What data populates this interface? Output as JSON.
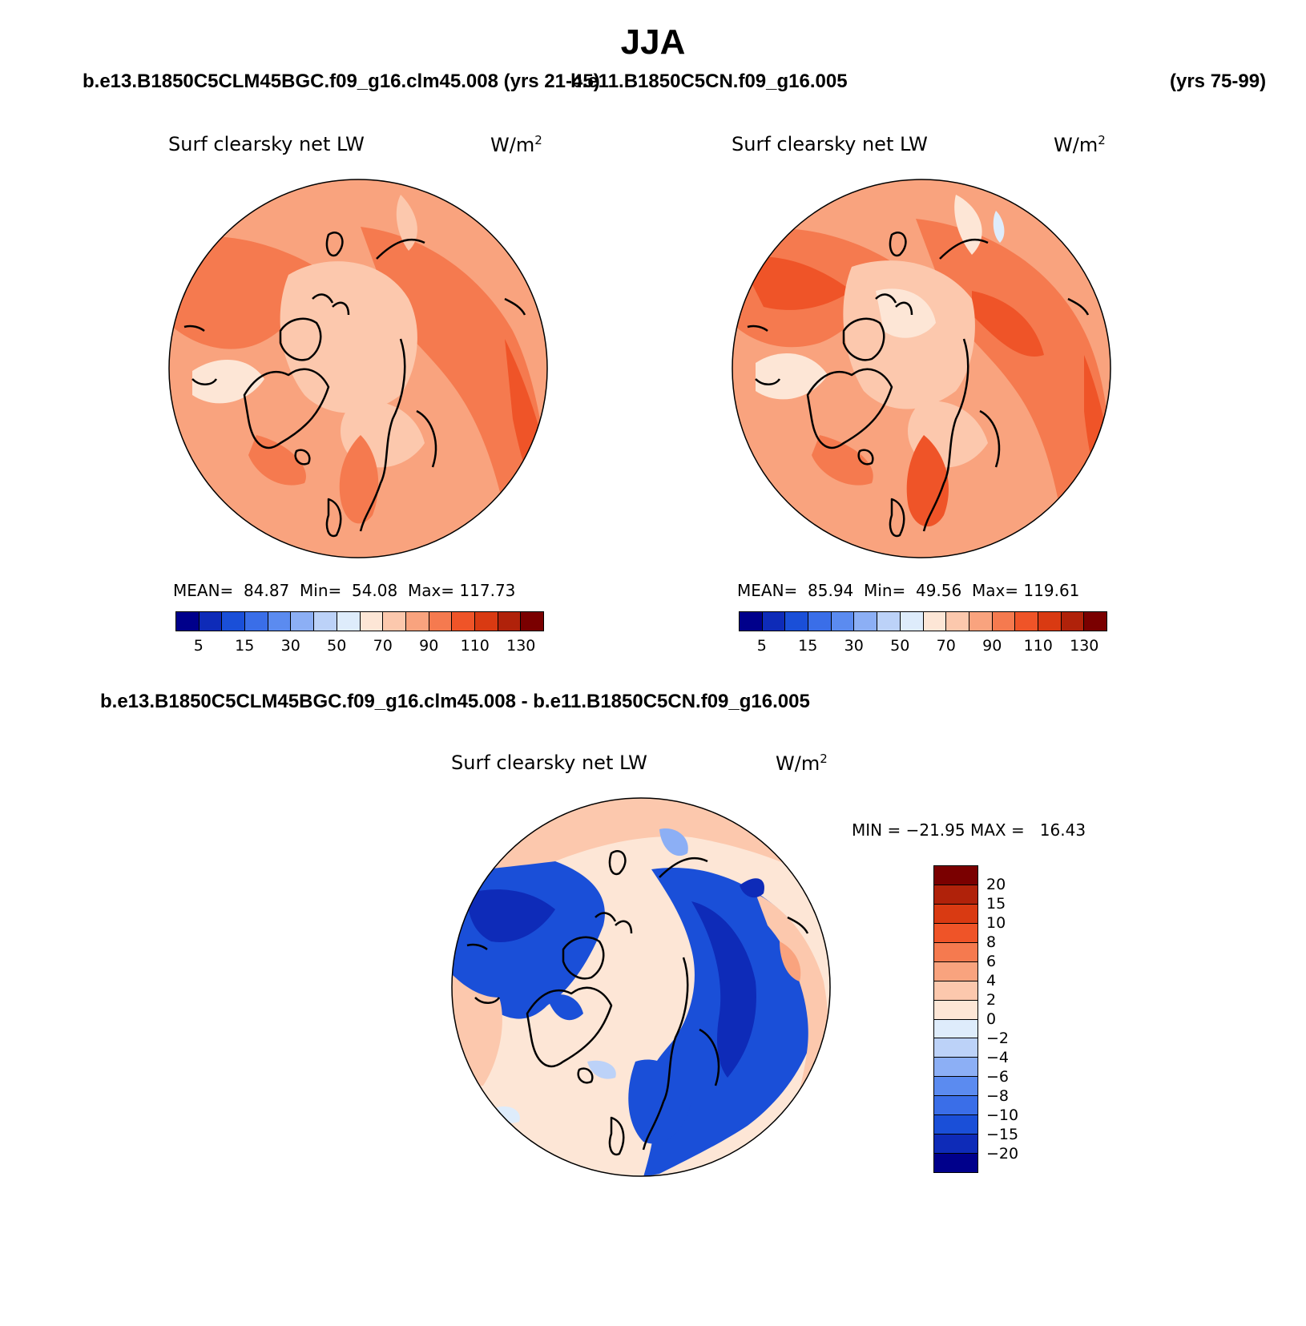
{
  "title": "JJA",
  "top_left_case": "b.e13.B1850C5CLM45BGC.f09_g16.clm45.008 (yrs 21-45)",
  "top_right_case": "b.e11.B1850C5CN.f09_g16.005",
  "top_right_years": "(yrs 75-99)",
  "diff_case": "b.e13.B1850C5CLM45BGC.f09_g16.clm45.008 - b.e11.B1850C5CN.f09_g16.005",
  "panels": [
    {
      "variable": "Surf clearsky net LW",
      "units_base": "W/m",
      "units_sup": "2",
      "mean_label": "MEAN=",
      "mean": "84.87",
      "min_label": "Min=",
      "min": "54.08",
      "max_label": "Max=",
      "max": "117.73"
    },
    {
      "variable": "Surf clearsky net LW",
      "units_base": "W/m",
      "units_sup": "2",
      "mean_label": "MEAN=",
      "mean": "85.94",
      "min_label": "Min=",
      "min": "49.56",
      "max_label": "Max=",
      "max": "119.61"
    }
  ],
  "diff_panel": {
    "variable": "Surf clearsky net LW",
    "units_base": "W/m",
    "units_sup": "2",
    "minmax": "MIN = −21.95 MAX =   16.43"
  },
  "abs_colorbar": {
    "colors": [
      "#00008b",
      "#0e2bb8",
      "#1a4fd8",
      "#3a6ee8",
      "#5b8bf0",
      "#8caff5",
      "#bcd2f8",
      "#deecfb",
      "#fde6d6",
      "#fcc8ad",
      "#f9a37e",
      "#f57a4f",
      "#ef5428",
      "#d93a12",
      "#b0220a",
      "#7a0000"
    ],
    "tick_labels": [
      "5",
      "15",
      "30",
      "50",
      "70",
      "90",
      "110",
      "130"
    ]
  },
  "diff_colorbar": {
    "colors": [
      "#7a0000",
      "#b0220a",
      "#d93a12",
      "#ef5428",
      "#f57a4f",
      "#f9a37e",
      "#fcc8ad",
      "#fde6d6",
      "#deecfb",
      "#bcd2f8",
      "#8caff5",
      "#5b8bf0",
      "#3a6ee8",
      "#1a4fd8",
      "#0e2bb8",
      "#00008b"
    ],
    "tick_labels": [
      "20",
      "15",
      "10",
      "8",
      "6",
      "4",
      "2",
      "0",
      "−2",
      "−4",
      "−6",
      "−8",
      "−10",
      "−15",
      "−20"
    ]
  }
}
